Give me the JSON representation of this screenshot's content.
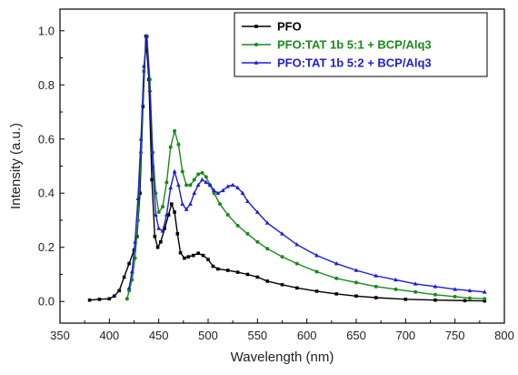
{
  "chart_data": {
    "type": "line",
    "title": "",
    "xlabel": "Wavelength (nm)",
    "ylabel": "Intensity (a.u.)",
    "xlim": [
      350,
      800
    ],
    "ylim": [
      -0.08,
      1.08
    ],
    "xticks": [
      350,
      400,
      450,
      500,
      550,
      600,
      650,
      700,
      750,
      800
    ],
    "yticks": [
      0.0,
      0.2,
      0.4,
      0.6,
      0.8,
      1.0
    ],
    "ytick_labels": [
      "0.0",
      "0.2",
      "0.4",
      "0.6",
      "0.8",
      "1.0"
    ],
    "grid": false,
    "legend_position": "top-right",
    "series": [
      {
        "name": "PFO",
        "color": "#000000",
        "marker": "square",
        "x": [
          380,
          390,
          400,
          405,
          410,
          415,
          420,
          425,
          428,
          431,
          434,
          437,
          440,
          443,
          446,
          449,
          452,
          456,
          460,
          463,
          466,
          469,
          472,
          476,
          480,
          485,
          490,
          495,
          500,
          505,
          510,
          520,
          530,
          540,
          550,
          560,
          575,
          590,
          610,
          630,
          650,
          670,
          700,
          730,
          760,
          780
        ],
        "y": [
          0.005,
          0.008,
          0.01,
          0.02,
          0.04,
          0.09,
          0.14,
          0.19,
          0.24,
          0.4,
          0.72,
          0.98,
          0.82,
          0.45,
          0.24,
          0.2,
          0.22,
          0.27,
          0.32,
          0.36,
          0.33,
          0.25,
          0.18,
          0.16,
          0.165,
          0.17,
          0.178,
          0.17,
          0.155,
          0.13,
          0.12,
          0.115,
          0.108,
          0.1,
          0.09,
          0.075,
          0.062,
          0.05,
          0.038,
          0.028,
          0.02,
          0.014,
          0.008,
          0.005,
          0.003,
          0.002
        ]
      },
      {
        "name": "PFO:TAT 1b 5:1 + BCP/Alq3",
        "color": "#1a8a1a",
        "marker": "circle",
        "x": [
          418,
          420,
          423,
          426,
          429,
          432,
          435,
          438,
          441,
          444,
          447,
          450,
          454,
          458,
          462,
          466,
          470,
          474,
          478,
          482,
          486,
          490,
          494,
          498,
          502,
          506,
          512,
          520,
          530,
          540,
          550,
          560,
          575,
          590,
          610,
          630,
          650,
          670,
          690,
          710,
          730,
          750,
          765,
          780
        ],
        "y": [
          0.01,
          0.04,
          0.08,
          0.16,
          0.3,
          0.55,
          0.85,
          0.98,
          0.82,
          0.55,
          0.4,
          0.33,
          0.35,
          0.44,
          0.57,
          0.63,
          0.58,
          0.48,
          0.43,
          0.43,
          0.45,
          0.47,
          0.475,
          0.46,
          0.43,
          0.4,
          0.36,
          0.32,
          0.28,
          0.25,
          0.22,
          0.195,
          0.165,
          0.14,
          0.11,
          0.085,
          0.07,
          0.055,
          0.045,
          0.035,
          0.025,
          0.018,
          0.012,
          0.01
        ]
      },
      {
        "name": "PFO:TAT 1b 5:2 + BCP/Alq3",
        "color": "#1d1dd8",
        "marker": "triangle",
        "x": [
          420,
          423,
          426,
          429,
          432,
          435,
          438,
          441,
          444,
          447,
          450,
          454,
          458,
          462,
          466,
          470,
          474,
          478,
          482,
          486,
          490,
          494,
          498,
          502,
          506,
          510,
          515,
          520,
          525,
          530,
          535,
          540,
          550,
          560,
          575,
          590,
          610,
          630,
          650,
          670,
          690,
          710,
          730,
          750,
          765,
          780
        ],
        "y": [
          0.05,
          0.11,
          0.22,
          0.38,
          0.6,
          0.87,
          0.98,
          0.78,
          0.5,
          0.32,
          0.27,
          0.26,
          0.32,
          0.42,
          0.48,
          0.43,
          0.36,
          0.34,
          0.36,
          0.4,
          0.43,
          0.45,
          0.44,
          0.43,
          0.41,
          0.4,
          0.41,
          0.425,
          0.43,
          0.42,
          0.4,
          0.37,
          0.33,
          0.29,
          0.25,
          0.21,
          0.17,
          0.14,
          0.115,
          0.095,
          0.08,
          0.065,
          0.055,
          0.045,
          0.04,
          0.035
        ]
      }
    ]
  }
}
